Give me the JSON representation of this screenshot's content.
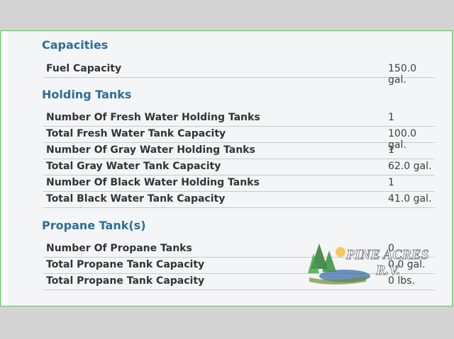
{
  "sections": {
    "capacities": {
      "title": "Capacities",
      "rows": [
        {
          "label": "Fuel Capacity",
          "value": "150.0 gal."
        }
      ]
    },
    "holding_tanks": {
      "title": "Holding Tanks",
      "rows": [
        {
          "label": "Number Of Fresh Water Holding Tanks",
          "value": "1"
        },
        {
          "label": "Total Fresh Water Tank Capacity",
          "value": "100.0 gal."
        },
        {
          "label": "Number Of Gray Water Holding Tanks",
          "value": "1"
        },
        {
          "label": "Total Gray Water Tank Capacity",
          "value": "62.0 gal."
        },
        {
          "label": "Number Of Black Water Holding Tanks",
          "value": "1"
        },
        {
          "label": "Total Black Water Tank Capacity",
          "value": "41.0 gal."
        }
      ]
    },
    "propane": {
      "title": "Propane Tank(s)",
      "rows": [
        {
          "label": "Number Of Propane Tanks",
          "value": "0"
        },
        {
          "label": "Total Propane Tank Capacity",
          "value": "0.0 gal."
        },
        {
          "label": "Total Propane Tank Capacity",
          "value": "0 lbs."
        }
      ]
    }
  },
  "watermark": {
    "line1": "PINE ACRES",
    "line2": "R.V."
  },
  "colors": {
    "section_title": "#2b6e98",
    "card_border": "#5cc35c",
    "background": "#d3d3d3"
  }
}
